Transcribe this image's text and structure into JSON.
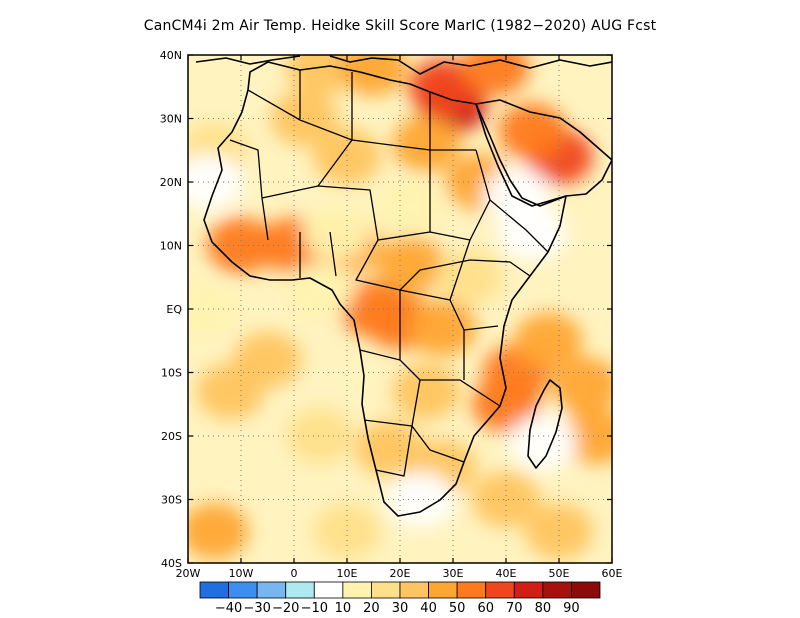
{
  "title": "CanCM4i  2m Air Temp. Heidke Skill Score MarIC (1982−2020) AUG Fcst",
  "axes": {
    "lat_ticks": [
      "40N",
      "30N",
      "20N",
      "10N",
      "EQ",
      "10S",
      "20S",
      "30S",
      "40S"
    ],
    "lon_ticks": [
      "20W",
      "10W",
      "0",
      "10E",
      "20E",
      "30E",
      "40E",
      "50E",
      "60E"
    ],
    "lat_range": [
      -40,
      40
    ],
    "lon_range": [
      -20,
      60
    ],
    "grid": "dotted"
  },
  "colorbar": {
    "labels": [
      "−40",
      "−30",
      "−20",
      "−10",
      "10",
      "20",
      "30",
      "40",
      "50",
      "60",
      "70",
      "80",
      "90"
    ],
    "colors": [
      "#1f6fe0",
      "#3c8ff0",
      "#78b6f0",
      "#aee8f0",
      "#ffffff",
      "#fff3b0",
      "#ffe08a",
      "#ffc560",
      "#ffa532",
      "#ff7a1e",
      "#f0461e",
      "#d21e14",
      "#a8100e",
      "#8c0a0a"
    ]
  },
  "chart_data": {
    "type": "heatmap",
    "title": "CanCM4i  2m Air Temp. Heidke Skill Score MarIC (1982−2020) AUG Fcst",
    "x": [
      "20W",
      "10W",
      "0",
      "10E",
      "20E",
      "30E",
      "40E",
      "50E",
      "60E"
    ],
    "y": [
      "40N",
      "30N",
      "20N",
      "10N",
      "EQ",
      "10S",
      "20S",
      "30S",
      "40S"
    ],
    "levels": [
      -40,
      -30,
      -20,
      -10,
      10,
      20,
      30,
      40,
      50,
      60,
      70,
      80,
      90
    ],
    "regions": [
      {
        "lon": 30,
        "lat": 32,
        "value": 70
      },
      {
        "lon": 28,
        "lat": 35,
        "value": 60
      },
      {
        "lon": 50,
        "lat": 24,
        "value": 60
      },
      {
        "lon": 45,
        "lat": 28,
        "value": 50
      },
      {
        "lon": 25,
        "lat": 26,
        "value": 40
      },
      {
        "lon": 35,
        "lat": 20,
        "value": 40
      },
      {
        "lon": 2,
        "lat": 30,
        "value": 30
      },
      {
        "lon": 10,
        "lat": 24,
        "value": 30
      },
      {
        "lon": -10,
        "lat": 10,
        "value": 50
      },
      {
        "lon": 0,
        "lat": 10,
        "value": 50
      },
      {
        "lon": 10,
        "lat": 10,
        "value": 40
      },
      {
        "lon": 22,
        "lat": 7,
        "value": 40
      },
      {
        "lon": 15,
        "lat": 0,
        "value": 50
      },
      {
        "lon": 20,
        "lat": -2,
        "value": 50
      },
      {
        "lon": 28,
        "lat": -3,
        "value": 40
      },
      {
        "lon": 42,
        "lat": -10,
        "value": 50
      },
      {
        "lon": 40,
        "lat": -15,
        "value": 50
      },
      {
        "lon": 55,
        "lat": -12,
        "value": 40
      },
      {
        "lon": 57,
        "lat": -20,
        "value": 40
      },
      {
        "lon": 48,
        "lat": -5,
        "value": 40
      },
      {
        "lon": 25,
        "lat": -13,
        "value": 30
      },
      {
        "lon": 18,
        "lat": -22,
        "value": 30
      },
      {
        "lon": 28,
        "lat": -25,
        "value": 30
      },
      {
        "lon": -5,
        "lat": -8,
        "value": 30
      },
      {
        "lon": -12,
        "lat": -13,
        "value": 30
      },
      {
        "lon": 5,
        "lat": -20,
        "value": 20
      },
      {
        "lon": -15,
        "lat": -35,
        "value": 40
      },
      {
        "lon": 40,
        "lat": -30,
        "value": 30
      },
      {
        "lon": 50,
        "lat": -35,
        "value": 30
      },
      {
        "lon": 10,
        "lat": -35,
        "value": 20
      },
      {
        "lon": 5,
        "lat": 38,
        "value": 30
      },
      {
        "lon": 15,
        "lat": 38,
        "value": 40
      },
      {
        "lon": 38,
        "lat": 38,
        "value": 50
      },
      {
        "lon": -15,
        "lat": 25,
        "value": 20
      },
      {
        "lon": 33,
        "lat": 5,
        "value": 20
      },
      {
        "lon": 24,
        "lat": -30,
        "value": -10
      },
      {
        "lon": 45,
        "lat": 12,
        "value": -10
      },
      {
        "lon": 42,
        "lat": 18,
        "value": -10
      },
      {
        "lon": -16,
        "lat": 20,
        "value": -10
      },
      {
        "lon": 47,
        "lat": -21,
        "value": -10
      },
      {
        "lon": 8,
        "lat": 12,
        "value": 10
      },
      {
        "lon": 22,
        "lat": 16,
        "value": 10
      },
      {
        "lon": -17,
        "lat": 0,
        "value": 10
      },
      {
        "lon": 5,
        "lat": 3,
        "value": 10
      }
    ]
  }
}
